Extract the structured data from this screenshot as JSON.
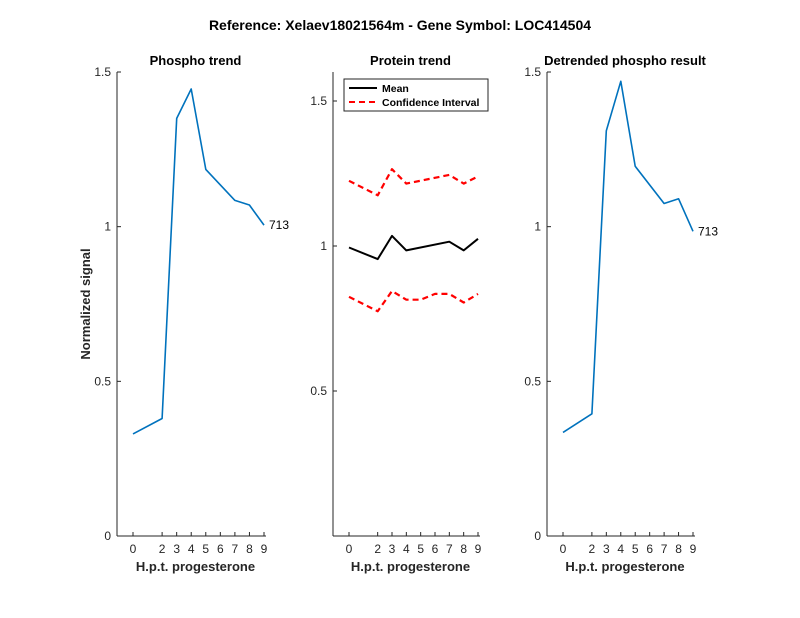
{
  "figure_title": "Reference:  Xelaev18021564m - Gene Symbol:  LOC414504",
  "colors": {
    "phospho_line": "#0072BD",
    "mean_line": "#000000",
    "ci_line": "#FF0000",
    "axis": "#262626"
  },
  "chart_data": [
    {
      "type": "line",
      "title": "Phospho trend",
      "xlabel": "H.p.t. progesterone",
      "ylabel": "Normalized signal",
      "x_ticks": [
        0,
        2,
        3,
        4,
        5,
        6,
        7,
        8,
        9
      ],
      "y_ticks": [
        "0",
        "0.5",
        "1",
        "1.5"
      ],
      "ylim": [
        0,
        1.5
      ],
      "grid": false,
      "series": [
        {
          "x": [
            0,
            2,
            3,
            4,
            5,
            7,
            8,
            9
          ],
          "values": [
            0.33,
            0.38,
            1.35,
            1.445,
            1.185,
            1.085,
            1.07,
            1.005
          ],
          "end_label": "713"
        }
      ]
    },
    {
      "type": "line",
      "title": "Protein trend",
      "xlabel": "H.p.t. progesterone",
      "ylabel": "",
      "x_ticks": [
        0,
        2,
        3,
        4,
        5,
        6,
        7,
        8,
        9
      ],
      "y_ticks": [
        "0.5",
        "1",
        "1.5"
      ],
      "ylim": [
        0,
        1.6
      ],
      "grid": false,
      "legend": {
        "placement": "top-left"
      },
      "series": [
        {
          "name": "Mean",
          "x": [
            0,
            2,
            3,
            4,
            7,
            8,
            9
          ],
          "values": [
            0.995,
            0.955,
            1.035,
            0.985,
            1.015,
            0.985,
            1.025
          ]
        },
        {
          "name": "Confidence Interval",
          "x": [
            0,
            2,
            3,
            4,
            7,
            8,
            9
          ],
          "values": [
            1.225,
            1.175,
            1.265,
            1.215,
            1.245,
            1.215,
            1.24
          ]
        },
        {
          "name": "",
          "x": [
            0,
            2,
            3,
            4,
            5,
            6,
            7,
            8,
            9
          ],
          "values": [
            0.825,
            0.775,
            0.845,
            0.815,
            0.815,
            0.835,
            0.835,
            0.805,
            0.835
          ]
        }
      ]
    },
    {
      "type": "line",
      "title": "Detrended phospho result",
      "xlabel": "H.p.t. progesterone",
      "ylabel": "",
      "x_ticks": [
        0,
        2,
        3,
        4,
        5,
        6,
        7,
        8,
        9
      ],
      "y_ticks": [
        "0",
        "0.5",
        "1",
        "1.5"
      ],
      "ylim": [
        0,
        1.5
      ],
      "grid": false,
      "series": [
        {
          "x": [
            0,
            2,
            3,
            4,
            5,
            7,
            8,
            9
          ],
          "values": [
            0.335,
            0.395,
            1.31,
            1.47,
            1.195,
            1.075,
            1.09,
            0.985
          ],
          "end_label": "713"
        }
      ]
    }
  ]
}
